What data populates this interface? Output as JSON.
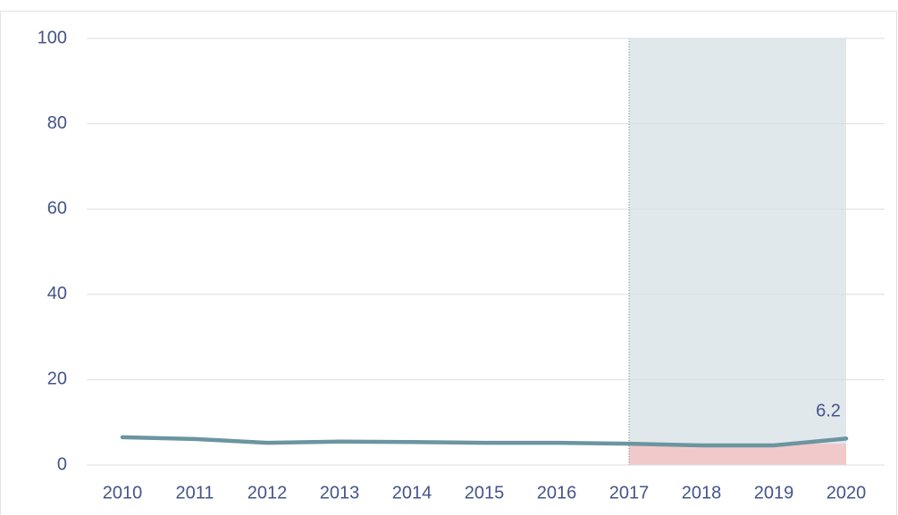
{
  "chart_data": {
    "type": "line",
    "categories": [
      "2010",
      "2011",
      "2012",
      "2013",
      "2014",
      "2015",
      "2016",
      "2017",
      "2018",
      "2019",
      "2020"
    ],
    "series": [
      {
        "color": "#6b95a0",
        "values": [
          6.5,
          6.1,
          5.2,
          5.5,
          5.4,
          5.2,
          5.2,
          5.0,
          4.6,
          4.6,
          6.2
        ]
      }
    ],
    "ylim": [
      0,
      100
    ],
    "yticks": [
      0,
      20,
      40,
      60,
      80,
      100
    ],
    "grid": true,
    "shaded_range": [
      "2017",
      "2020"
    ],
    "shaded_color": "#e1e8ec",
    "band_value": 5,
    "band_color": "#f2c9ca",
    "labeled_points": [
      10
    ]
  }
}
